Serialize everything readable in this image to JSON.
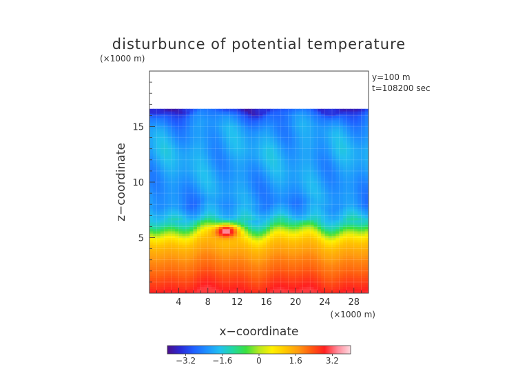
{
  "chart_data": {
    "type": "heatmap",
    "title": "disturbunce of potential temperature",
    "unit_label": "(×1000 m)",
    "xlabel": "x−coordinate",
    "ylabel": "z−coordinate",
    "x_unit_label": "(×1000 m)",
    "annotations": [
      "y=100 m",
      "t=108200 sec"
    ],
    "xlim": [
      0,
      30
    ],
    "ylim": [
      0,
      20
    ],
    "data_top": 16.6,
    "x_ticks": [
      4,
      8,
      12,
      16,
      20,
      24,
      28
    ],
    "x_tick_labels": [
      "4",
      "8",
      "12",
      "16",
      "20",
      "24",
      "28"
    ],
    "y_ticks": [
      5,
      10,
      15
    ],
    "y_tick_labels": [
      "5",
      "10",
      "15"
    ],
    "colorbar": {
      "min": -4.0,
      "max": 4.0,
      "ticks": [
        -3.2,
        -1.6,
        0,
        1.6,
        3.2
      ],
      "tick_labels": [
        "−3.2",
        "−1.6",
        "0",
        "1.6",
        "3.2"
      ],
      "colors": [
        "#4b0f8a",
        "#2a2ad6",
        "#1f5fff",
        "#1e90ff",
        "#22c0f0",
        "#22d8a0",
        "#3ae040",
        "#b6e820",
        "#fff000",
        "#ffc800",
        "#ff9a10",
        "#ff5a10",
        "#ff2020",
        "#ff8a9a",
        "#ffd8df"
      ]
    },
    "field_profile": {
      "z": [
        0,
        1,
        2,
        3,
        4,
        4.6,
        5.2,
        5.8,
        6.3,
        7,
        8,
        9,
        11,
        13,
        15,
        16,
        16.4,
        16.6
      ],
      "value": [
        3.0,
        2.6,
        2.2,
        1.9,
        1.5,
        1.2,
        0.6,
        -0.4,
        -1.2,
        -1.8,
        -2.3,
        -2.2,
        -2.1,
        -2.0,
        -2.2,
        -2.6,
        -3.0,
        -3.4
      ]
    },
    "warm_bubble": {
      "x": 10.5,
      "z": 5.6,
      "peak": 3.6
    }
  }
}
